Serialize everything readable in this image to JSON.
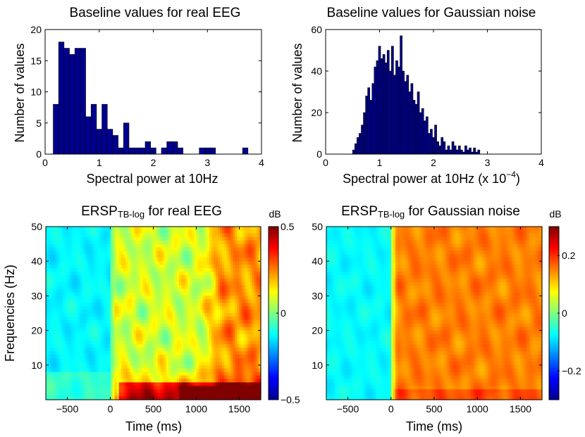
{
  "chart_data": [
    {
      "type": "bar",
      "title": "Baseline values for real EEG",
      "xlabel": "Spectral power at 10Hz",
      "ylabel": "Number of values",
      "xlim": [
        0,
        4
      ],
      "ylim": [
        0,
        20
      ],
      "xticks": [
        "0",
        "1",
        "2",
        "3",
        "4"
      ],
      "yticks": [
        "0",
        "5",
        "10",
        "15",
        "20"
      ],
      "bin_width": 0.1,
      "bar_color": "#00008f",
      "x": [
        0.2,
        0.3,
        0.4,
        0.5,
        0.6,
        0.7,
        0.8,
        0.9,
        1.0,
        1.1,
        1.2,
        1.3,
        1.4,
        1.5,
        1.6,
        1.7,
        1.8,
        1.9,
        2.0,
        2.1,
        2.2,
        2.3,
        2.4,
        2.5,
        2.6,
        2.7,
        2.8,
        2.9,
        3.0,
        3.1,
        3.2,
        3.3,
        3.4,
        3.5,
        3.6,
        3.7
      ],
      "values": [
        8,
        18,
        17,
        16,
        17,
        17,
        6,
        8,
        4,
        8,
        4,
        3,
        1,
        5,
        1,
        1,
        1,
        2,
        1,
        0,
        1,
        2,
        2,
        1,
        0,
        0,
        0,
        1,
        1,
        1,
        0,
        0,
        0,
        0,
        0,
        1
      ]
    },
    {
      "type": "bar",
      "title": "Baseline values for Gaussian noise",
      "xlabel": "Spectral power at 10Hz (x 10",
      "xlabel_exponent": "−4",
      "xlabel_suffix": ")",
      "ylabel": "Number of values",
      "xlim": [
        0,
        4
      ],
      "ylim": [
        0,
        60
      ],
      "xticks": [
        "0",
        "1",
        "2",
        "3",
        "4"
      ],
      "yticks": [
        "0",
        "20",
        "40",
        "60"
      ],
      "bin_width": 0.04,
      "bar_color": "#00008f",
      "x": [
        0.52,
        0.56,
        0.6,
        0.64,
        0.68,
        0.72,
        0.76,
        0.8,
        0.84,
        0.88,
        0.92,
        0.96,
        1.0,
        1.04,
        1.08,
        1.12,
        1.16,
        1.2,
        1.24,
        1.28,
        1.32,
        1.36,
        1.4,
        1.44,
        1.48,
        1.52,
        1.56,
        1.6,
        1.64,
        1.68,
        1.72,
        1.76,
        1.8,
        1.84,
        1.88,
        1.92,
        1.96,
        2.0,
        2.04,
        2.08,
        2.12,
        2.16,
        2.2,
        2.24,
        2.28,
        2.32,
        2.36,
        2.4,
        2.44,
        2.48,
        2.52,
        2.56,
        2.6,
        2.64,
        2.68,
        2.72,
        2.76,
        2.8,
        2.84
      ],
      "values": [
        2,
        5,
        8,
        10,
        14,
        20,
        28,
        32,
        26,
        34,
        42,
        45,
        52,
        46,
        48,
        44,
        50,
        40,
        52,
        38,
        45,
        42,
        57,
        40,
        35,
        38,
        30,
        34,
        26,
        24,
        30,
        20,
        22,
        16,
        18,
        10,
        12,
        8,
        14,
        6,
        4,
        8,
        6,
        2,
        4,
        2,
        6,
        4,
        2,
        4,
        2,
        1,
        4,
        2,
        3,
        1,
        3,
        1,
        2
      ]
    },
    {
      "type": "heatmap",
      "title_main": "ERSP",
      "title_sub": "TB-log",
      "title_rest": " for real EEG",
      "xlabel": "Time (ms)",
      "ylabel": "Frequencies (Hz)",
      "xlim": [
        -750,
        1750
      ],
      "ylim": [
        0,
        50
      ],
      "xticks": [
        "−500",
        "0",
        "500",
        "1000",
        "1500"
      ],
      "yticks": [
        "10",
        "20",
        "30",
        "40",
        "50"
      ],
      "colorbar_label": "dB",
      "clim": [
        -0.5,
        0.5
      ],
      "colorbar_ticks": [
        "0.5",
        "0",
        "−0.5"
      ]
    },
    {
      "type": "heatmap",
      "title_main": "ERSP",
      "title_sub": "TB-log",
      "title_rest": " for Gaussian noise",
      "xlabel": "Time (ms)",
      "ylabel": "",
      "xlim": [
        -750,
        1750
      ],
      "ylim": [
        0,
        50
      ],
      "xticks": [
        "−500",
        "0",
        "500",
        "1000",
        "1500"
      ],
      "yticks": [
        "10",
        "20",
        "30",
        "40",
        "50"
      ],
      "colorbar_label": "dB",
      "clim": [
        -0.3,
        0.3
      ],
      "colorbar_ticks": [
        "0.2",
        "0",
        "−0.2"
      ]
    }
  ]
}
